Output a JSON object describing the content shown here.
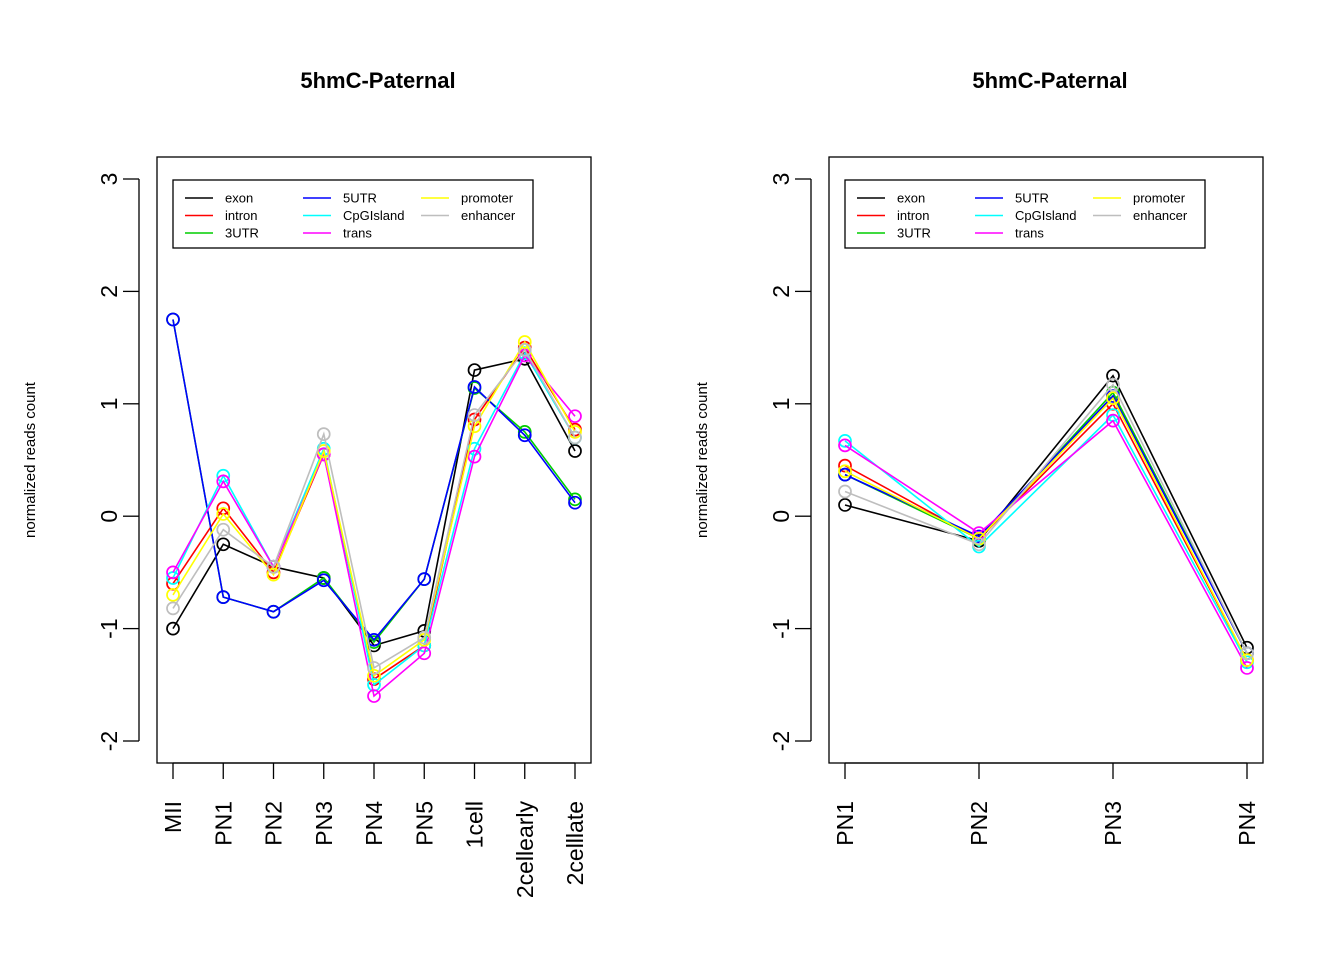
{
  "chart_data": [
    {
      "type": "line",
      "title": "5hmC-Paternal",
      "xlabel": "",
      "ylabel": "normalized reads count",
      "ylim": [
        -2,
        3
      ],
      "yticks": [
        -2,
        -1,
        0,
        1,
        2,
        3
      ],
      "tick_labels_y": [
        "-2",
        "-1",
        "0",
        "1",
        "2",
        "3"
      ],
      "categories": [
        "MII",
        "PN1",
        "PN2",
        "PN3",
        "PN4",
        "PN5",
        "1cell",
        "2cellearly",
        "2celllate"
      ],
      "legend_position": "top-left",
      "series": [
        {
          "name": "exon",
          "color": "#000000",
          "values": [
            -1.0,
            -0.25,
            -0.45,
            -0.55,
            -1.15,
            -1.02,
            1.3,
            1.4,
            0.58
          ]
        },
        {
          "name": "intron",
          "color": "#FF0000",
          "values": [
            -0.6,
            0.07,
            -0.5,
            0.55,
            -1.45,
            -1.15,
            0.86,
            1.5,
            0.77
          ]
        },
        {
          "name": "3UTR",
          "color": "#00CD00",
          "values": [
            1.75,
            -0.72,
            -0.85,
            -0.55,
            -1.12,
            -0.56,
            1.14,
            0.75,
            0.15
          ]
        },
        {
          "name": "5UTR",
          "color": "#0000FF",
          "values": [
            1.75,
            -0.72,
            -0.85,
            -0.57,
            -1.1,
            -0.56,
            1.15,
            0.72,
            0.12
          ]
        },
        {
          "name": "CpGIsland",
          "color": "#00FFFF",
          "values": [
            -0.55,
            0.36,
            -0.45,
            0.6,
            -1.5,
            -1.15,
            0.6,
            1.45,
            0.7
          ]
        },
        {
          "name": "trans",
          "color": "#FF00FF",
          "values": [
            -0.5,
            0.31,
            -0.45,
            0.55,
            -1.6,
            -1.22,
            0.53,
            1.43,
            0.89
          ]
        },
        {
          "name": "promoter",
          "color": "#FFFF00",
          "values": [
            -0.7,
            0.02,
            -0.52,
            0.58,
            -1.42,
            -1.1,
            0.8,
            1.55,
            0.75
          ]
        },
        {
          "name": "enhancer",
          "color": "#BEBEBE",
          "values": [
            -0.82,
            -0.12,
            -0.45,
            0.73,
            -1.35,
            -1.08,
            0.9,
            1.48,
            0.7
          ]
        }
      ]
    },
    {
      "type": "line",
      "title": "5hmC-Paternal",
      "xlabel": "",
      "ylabel": "normalized reads count",
      "ylim": [
        -2,
        3
      ],
      "yticks": [
        -2,
        -1,
        0,
        1,
        2,
        3
      ],
      "tick_labels_y": [
        "-2",
        "-1",
        "0",
        "1",
        "2",
        "3"
      ],
      "categories": [
        "PN1",
        "PN2",
        "PN3",
        "PN4"
      ],
      "legend_position": "top-left",
      "series": [
        {
          "name": "exon",
          "color": "#000000",
          "values": [
            0.1,
            -0.22,
            1.25,
            -1.17
          ]
        },
        {
          "name": "intron",
          "color": "#FF0000",
          "values": [
            0.45,
            -0.2,
            1.0,
            -1.28
          ]
        },
        {
          "name": "3UTR",
          "color": "#00CD00",
          "values": [
            0.37,
            -0.2,
            1.1,
            -1.22
          ]
        },
        {
          "name": "5UTR",
          "color": "#0000FF",
          "values": [
            0.37,
            -0.18,
            1.07,
            -1.22
          ]
        },
        {
          "name": "CpGIsland",
          "color": "#00FFFF",
          "values": [
            0.67,
            -0.27,
            0.9,
            -1.3
          ]
        },
        {
          "name": "trans",
          "color": "#FF00FF",
          "values": [
            0.63,
            -0.15,
            0.85,
            -1.35
          ]
        },
        {
          "name": "promoter",
          "color": "#FFFF00",
          "values": [
            0.4,
            -0.2,
            1.05,
            -1.28
          ]
        },
        {
          "name": "enhancer",
          "color": "#BEBEBE",
          "values": [
            0.22,
            -0.25,
            1.17,
            -1.22
          ]
        }
      ]
    }
  ]
}
